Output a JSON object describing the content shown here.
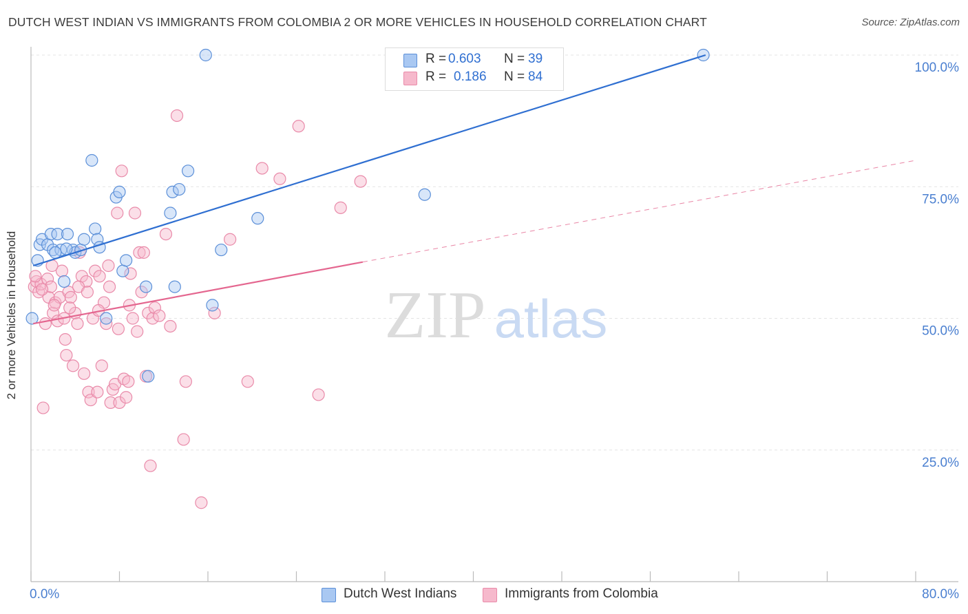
{
  "title": "DUTCH WEST INDIAN VS IMMIGRANTS FROM COLOMBIA 2 OR MORE VEHICLES IN HOUSEHOLD CORRELATION CHART",
  "source": "Source: ZipAtlas.com",
  "watermark": {
    "zip": "ZIP",
    "atlas": "atlas"
  },
  "legend": {
    "r_label": "R =",
    "n_label": "N =",
    "series1": {
      "r": "0.603",
      "n": "39"
    },
    "series2": {
      "r": "0.186",
      "n": "84"
    }
  },
  "bottom_legend": {
    "series1": "Dutch West Indians",
    "series2": "Immigrants from Colombia"
  },
  "colors": {
    "blue_fill": "#a9c8f2",
    "blue_stroke": "#5b8fd8",
    "blue_line": "#2f6fd1",
    "pink_fill": "#f6b9cc",
    "pink_stroke": "#e98aa9",
    "pink_line": "#e4668f",
    "axis_text": "#4a7fd0",
    "grid": "#e3e3e3"
  },
  "chart_data": {
    "type": "scatter",
    "title": "DUTCH WEST INDIAN VS IMMIGRANTS FROM COLOMBIA 2 OR MORE VEHICLES IN HOUSEHOLD CORRELATION CHART",
    "xlabel": "",
    "ylabel": "2 or more Vehicles in Household",
    "xlim": [
      0,
      80
    ],
    "ylim": [
      0,
      102
    ],
    "x_tick_labels": [
      "0.0%",
      "80.0%"
    ],
    "y_ticks": [
      25,
      50,
      75,
      100
    ],
    "y_tick_labels": [
      "25.0%",
      "50.0%",
      "75.0%",
      "100.0%"
    ],
    "series": [
      {
        "name": "Dutch West Indians",
        "r": 0.603,
        "n": 39,
        "trend": {
          "x": [
            0.2,
            61.0
          ],
          "y": [
            60.0,
            100.0
          ],
          "dashed_until": 61.0
        },
        "points": [
          [
            0.1,
            50.0
          ],
          [
            0.6,
            61.0
          ],
          [
            0.8,
            64.0
          ],
          [
            1.0,
            65.0
          ],
          [
            1.5,
            64.0
          ],
          [
            1.8,
            66.0
          ],
          [
            2.0,
            63.0
          ],
          [
            2.4,
            66.0
          ],
          [
            2.7,
            63.0
          ],
          [
            3.0,
            57.0
          ],
          [
            3.3,
            66.0
          ],
          [
            3.8,
            63.0
          ],
          [
            4.0,
            62.5
          ],
          [
            4.5,
            63.0
          ],
          [
            4.8,
            65.0
          ],
          [
            5.8,
            67.0
          ],
          [
            6.0,
            65.0
          ],
          [
            6.2,
            63.5
          ],
          [
            6.8,
            50.0
          ],
          [
            5.5,
            80.0
          ],
          [
            7.7,
            73.0
          ],
          [
            8.0,
            74.0
          ],
          [
            8.3,
            59.0
          ],
          [
            8.6,
            61.0
          ],
          [
            10.4,
            56.0
          ],
          [
            10.6,
            39.0
          ],
          [
            12.6,
            70.0
          ],
          [
            12.8,
            74.0
          ],
          [
            13.0,
            56.0
          ],
          [
            13.4,
            74.5
          ],
          [
            14.2,
            78.0
          ],
          [
            15.8,
            100.0
          ],
          [
            16.4,
            52.5
          ],
          [
            17.2,
            63.0
          ],
          [
            20.5,
            69.0
          ],
          [
            35.6,
            73.5
          ],
          [
            60.8,
            100.0
          ],
          [
            3.2,
            63.2
          ],
          [
            2.2,
            62.5
          ]
        ]
      },
      {
        "name": "Immigrants from Colombia",
        "r": 0.186,
        "n": 84,
        "trend": {
          "x": [
            0.2,
            30.0
          ],
          "y": [
            49.0,
            60.7
          ],
          "dashed_to": {
            "x": 80.0,
            "y": 80.0
          }
        },
        "points": [
          [
            0.3,
            56.0
          ],
          [
            0.5,
            57.0
          ],
          [
            0.7,
            55.0
          ],
          [
            0.9,
            56.5
          ],
          [
            1.1,
            33.0
          ],
          [
            1.3,
            49.0
          ],
          [
            1.5,
            57.5
          ],
          [
            1.6,
            54.0
          ],
          [
            1.8,
            56.0
          ],
          [
            2.0,
            51.0
          ],
          [
            2.2,
            53.0
          ],
          [
            2.4,
            49.5
          ],
          [
            2.6,
            54.0
          ],
          [
            2.8,
            59.0
          ],
          [
            3.0,
            50.0
          ],
          [
            3.2,
            43.0
          ],
          [
            3.4,
            55.0
          ],
          [
            3.6,
            54.0
          ],
          [
            3.8,
            41.0
          ],
          [
            4.0,
            51.0
          ],
          [
            4.2,
            49.0
          ],
          [
            4.4,
            62.5
          ],
          [
            4.6,
            58.0
          ],
          [
            4.8,
            39.5
          ],
          [
            5.0,
            57.0
          ],
          [
            5.2,
            36.0
          ],
          [
            5.4,
            34.5
          ],
          [
            5.6,
            50.0
          ],
          [
            5.8,
            59.0
          ],
          [
            6.0,
            36.0
          ],
          [
            6.2,
            58.0
          ],
          [
            6.4,
            41.0
          ],
          [
            6.6,
            53.0
          ],
          [
            6.8,
            49.0
          ],
          [
            7.0,
            60.0
          ],
          [
            7.2,
            34.0
          ],
          [
            7.4,
            36.5
          ],
          [
            7.6,
            37.5
          ],
          [
            7.8,
            70.0
          ],
          [
            8.0,
            34.0
          ],
          [
            8.2,
            78.0
          ],
          [
            8.4,
            38.5
          ],
          [
            8.6,
            35.0
          ],
          [
            8.8,
            38.0
          ],
          [
            9.0,
            58.5
          ],
          [
            9.2,
            50.0
          ],
          [
            9.4,
            70.0
          ],
          [
            9.6,
            47.5
          ],
          [
            9.8,
            62.5
          ],
          [
            10.0,
            55.0
          ],
          [
            10.2,
            62.5
          ],
          [
            10.4,
            39.0
          ],
          [
            10.6,
            51.0
          ],
          [
            10.8,
            22.0
          ],
          [
            11.0,
            50.0
          ],
          [
            11.2,
            52.0
          ],
          [
            11.6,
            50.5
          ],
          [
            12.2,
            66.0
          ],
          [
            12.6,
            48.5
          ],
          [
            13.2,
            88.5
          ],
          [
            13.8,
            27.0
          ],
          [
            14.0,
            38.0
          ],
          [
            15.4,
            15.0
          ],
          [
            16.6,
            51.0
          ],
          [
            18.0,
            65.0
          ],
          [
            19.6,
            38.0
          ],
          [
            20.9,
            78.5
          ],
          [
            22.5,
            76.5
          ],
          [
            24.2,
            86.5
          ],
          [
            26.0,
            35.5
          ],
          [
            28.0,
            71.0
          ],
          [
            29.8,
            76.0
          ],
          [
            0.4,
            58.0
          ],
          [
            1.0,
            55.5
          ],
          [
            2.1,
            52.5
          ],
          [
            3.5,
            52.0
          ],
          [
            4.3,
            56.0
          ],
          [
            5.1,
            55.0
          ],
          [
            6.1,
            51.5
          ],
          [
            7.1,
            56.0
          ],
          [
            7.9,
            48.0
          ],
          [
            8.9,
            52.5
          ],
          [
            1.9,
            60.0
          ],
          [
            3.1,
            46.0
          ]
        ]
      }
    ]
  }
}
